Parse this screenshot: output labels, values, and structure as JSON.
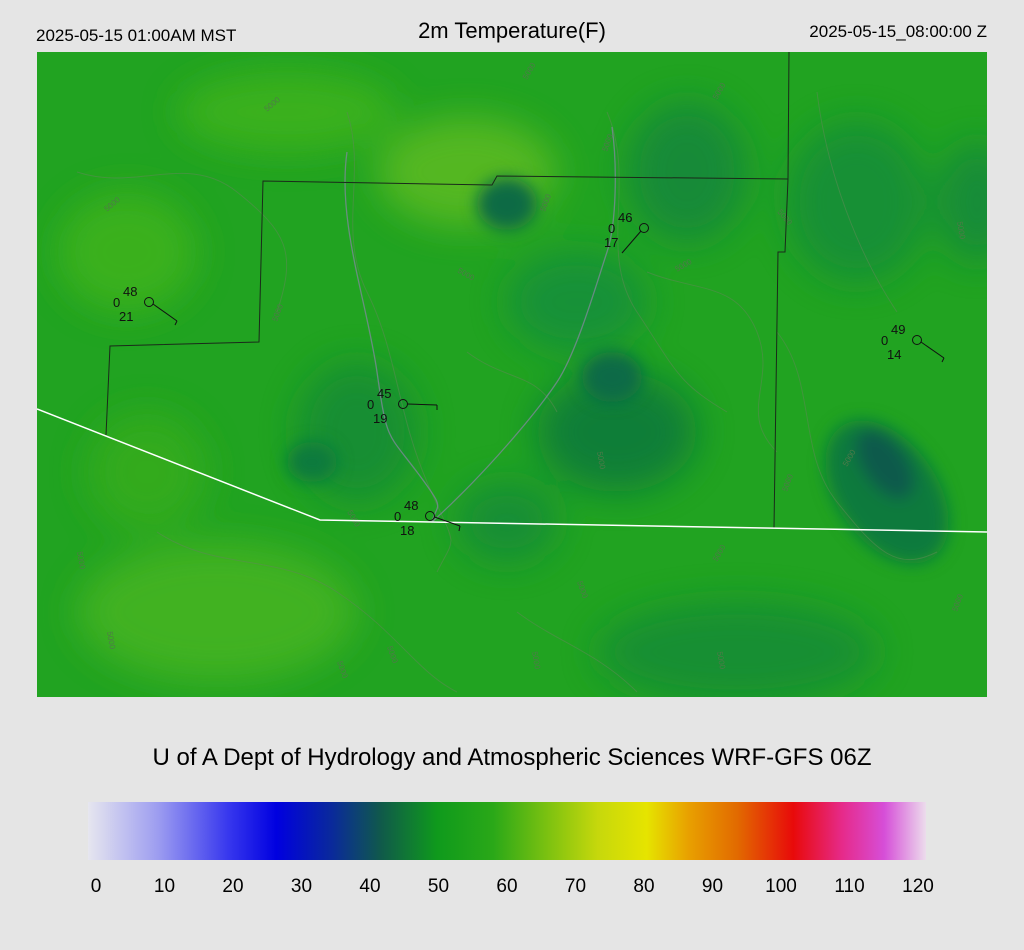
{
  "header": {
    "valid_local": "2025-05-15 01:00AM MST",
    "title": "2m Temperature(F)",
    "valid_utc": "2025-05-15_08:00:00 Z"
  },
  "footer": {
    "credit": "U of A Dept of Hydrology and Atmospheric Sciences WRF-GFS 06Z"
  },
  "map": {
    "field_color": "#21a321",
    "contour_label": "5000",
    "stations": [
      {
        "id": "s1",
        "temp": "48",
        "cloud": "0",
        "dewpoint": "21"
      },
      {
        "id": "s2",
        "temp": "46",
        "cloud": "0",
        "dewpoint": "17"
      },
      {
        "id": "s3",
        "temp": "49",
        "cloud": "0",
        "dewpoint": "14"
      },
      {
        "id": "s4",
        "temp": "45",
        "cloud": "0",
        "dewpoint": "19"
      },
      {
        "id": "s5",
        "temp": "48",
        "cloud": "0",
        "dewpoint": "18"
      }
    ]
  },
  "colorbar": {
    "min": 0,
    "max": 120,
    "ticks": [
      "0",
      "10",
      "20",
      "30",
      "40",
      "50",
      "60",
      "70",
      "80",
      "90",
      "100",
      "110",
      "120"
    ],
    "stops": [
      {
        "value": 0,
        "color": "#e6e6ef"
      },
      {
        "value": 10,
        "color": "#9d9df0"
      },
      {
        "value": 20,
        "color": "#3838ee"
      },
      {
        "value": 27,
        "color": "#0000e0"
      },
      {
        "value": 35,
        "color": "#0a2a9a"
      },
      {
        "value": 42,
        "color": "#105a4a"
      },
      {
        "value": 50,
        "color": "#0f9a1c"
      },
      {
        "value": 58,
        "color": "#2aa818"
      },
      {
        "value": 66,
        "color": "#7ec210"
      },
      {
        "value": 73,
        "color": "#c6d80c"
      },
      {
        "value": 80,
        "color": "#e6e400"
      },
      {
        "value": 86,
        "color": "#e8a000"
      },
      {
        "value": 93,
        "color": "#e26a00"
      },
      {
        "value": 101,
        "color": "#e80a0a"
      },
      {
        "value": 108,
        "color": "#e62a8a"
      },
      {
        "value": 114,
        "color": "#d64ed8"
      },
      {
        "value": 120,
        "color": "#ecdcec"
      }
    ]
  }
}
